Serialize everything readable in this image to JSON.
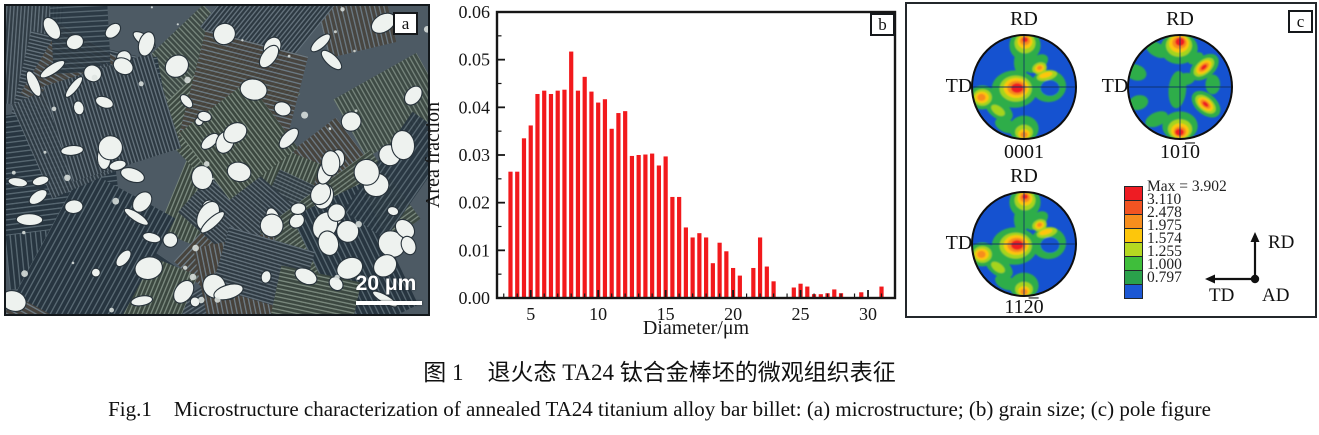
{
  "caption": {
    "zh_prefix": "图 1",
    "zh_text": "退火态 TA24 钛合金棒坯的微观组织表征",
    "en_prefix": "Fig.1",
    "en_text": "Microstructure characterization of annealed TA24 titanium alloy bar billet: (a) microstructure; (b) grain size; (c) pole figure"
  },
  "panel_a": {
    "label": "a",
    "scale_bar_text": "20 μm",
    "palette": {
      "background": "#4d5a64",
      "particle": "#eef2ef",
      "outline": "#27323a"
    }
  },
  "panel_b": {
    "label": "b"
  },
  "chart_data": {
    "type": "bar",
    "title": "",
    "xlabel": "Diameter/μm",
    "ylabel": "Area fraction",
    "xlim": [
      2.5,
      32
    ],
    "ylim": [
      0,
      0.06
    ],
    "x_ticks": [
      5,
      10,
      15,
      20,
      25,
      30
    ],
    "y_ticks": [
      "0.00",
      "0.01",
      "0.02",
      "0.03",
      "0.04",
      "0.05",
      "0.06"
    ],
    "grid": false,
    "legend": "none",
    "bar_color": "#f2191c",
    "bin_width": 0.5,
    "x": [
      3.5,
      4,
      4.5,
      5,
      5.5,
      6,
      6.5,
      7,
      7.5,
      8,
      8.5,
      9,
      9.5,
      10,
      10.5,
      11,
      11.5,
      12,
      12.5,
      13,
      13.5,
      14,
      14.5,
      15,
      15.5,
      16,
      16.5,
      17,
      17.5,
      18,
      18.5,
      19,
      19.5,
      20,
      20.5,
      21,
      21.5,
      22,
      22.5,
      23,
      23.5,
      24,
      24.5,
      25,
      25.5,
      26,
      26.5,
      27,
      27.5,
      28,
      28.5,
      29,
      29.5,
      30,
      30.5,
      31
    ],
    "values": [
      0.0265,
      0.0265,
      0.0335,
      0.0362,
      0.0428,
      0.0435,
      0.0428,
      0.0435,
      0.0437,
      0.0517,
      0.0435,
      0.0464,
      0.0433,
      0.041,
      0.0417,
      0.0355,
      0.0388,
      0.0392,
      0.0298,
      0.03,
      0.0301,
      0.0303,
      0.0278,
      0.0297,
      0.0212,
      0.0212,
      0.0148,
      0.0127,
      0.0136,
      0.0127,
      0.0073,
      0.0116,
      0.0098,
      0.0063,
      0.0047,
      0,
      0.0063,
      0.0127,
      0.0066,
      0.0035,
      0,
      0,
      0.0022,
      0.003,
      0.0024,
      0.0008,
      0.0008,
      0.001,
      0.0018,
      0.001,
      0,
      0,
      0.0012,
      0,
      0,
      0.0024
    ]
  },
  "panel_c": {
    "label": "c",
    "pole_figures": [
      {
        "top_label": "RD",
        "left_label": "TD",
        "title": "0001",
        "pattern": "A"
      },
      {
        "top_label": "RD",
        "left_label": "TD",
        "title": "101̅0",
        "pattern": "B"
      },
      {
        "top_label": "RD",
        "left_label": "TD",
        "title": "112̅0",
        "pattern": "A"
      }
    ],
    "legend": {
      "labels": [
        "Max = 3.902",
        "3.110",
        "2.478",
        "1.975",
        "1.574",
        "1.255",
        "1.000",
        "0.797"
      ],
      "colors": [
        "#ee1c23",
        "#f25422",
        "#f78e1d",
        "#fdc60b",
        "#b5d821",
        "#3fbe3b",
        "#2aa14b",
        "#1b57d4"
      ]
    },
    "triad": {
      "up": "RD",
      "left": "TD",
      "origin": "AD"
    },
    "pole_colors": {
      "bg": "#1552d0",
      "g": "#2fad48",
      "b2": "#1552d0",
      "yg": "#a6d41d",
      "y": "#fdc60b",
      "o": "#f78d1e",
      "r": "#ee1c23"
    },
    "patterns": {
      "A": [
        [
          "g",
          0.02,
          -0.8,
          0.3,
          0.3,
          0
        ],
        [
          "g",
          -0.02,
          -0.52,
          0.17,
          0.28,
          10
        ],
        [
          "g",
          -0.18,
          0.04,
          0.44,
          0.36,
          0
        ],
        [
          "g",
          -0.8,
          0.2,
          0.26,
          0.23,
          0
        ],
        [
          "g",
          -0.48,
          0.44,
          0.3,
          0.17,
          35
        ],
        [
          "g",
          -0.35,
          0.74,
          0.22,
          0.13,
          25
        ],
        [
          "g",
          0.0,
          0.8,
          0.28,
          0.25,
          0
        ],
        [
          "g",
          0.47,
          -0.02,
          0.34,
          0.31,
          0
        ],
        [
          "g",
          0.25,
          -0.45,
          0.24,
          0.14,
          -35
        ],
        [
          "g",
          0.13,
          0.0,
          0.14,
          0.11,
          0
        ],
        [
          "b2",
          0.5,
          0.02,
          0.18,
          0.15,
          0
        ],
        [
          "yg",
          0.02,
          -0.84,
          0.2,
          0.19,
          0
        ],
        [
          "yg",
          -0.16,
          0.03,
          0.31,
          0.25,
          0
        ],
        [
          "yg",
          -0.8,
          0.2,
          0.18,
          0.16,
          0
        ],
        [
          "yg",
          0.0,
          0.87,
          0.17,
          0.14,
          0
        ],
        [
          "yg",
          0.3,
          -0.36,
          0.14,
          0.11,
          -20
        ],
        [
          "yg",
          0.44,
          -0.22,
          0.2,
          0.09,
          -15
        ],
        [
          "yg",
          -0.5,
          0.45,
          0.15,
          0.08,
          35
        ],
        [
          "y",
          0.02,
          -0.87,
          0.14,
          0.13,
          0
        ],
        [
          "y",
          -0.15,
          0.02,
          0.24,
          0.19,
          0
        ],
        [
          "y",
          -0.81,
          0.2,
          0.13,
          0.11,
          0
        ],
        [
          "y",
          0.0,
          0.9,
          0.11,
          0.09,
          0
        ],
        [
          "y",
          0.3,
          -0.36,
          0.09,
          0.07,
          -20
        ],
        [
          "y",
          0.42,
          -0.23,
          0.13,
          0.05,
          -15
        ],
        [
          "o",
          0.02,
          -0.89,
          0.1,
          0.09,
          0
        ],
        [
          "o",
          -0.14,
          0.02,
          0.18,
          0.14,
          0
        ],
        [
          "o",
          -0.82,
          0.2,
          0.08,
          0.07,
          0
        ],
        [
          "o",
          0.0,
          0.92,
          0.07,
          0.06,
          0
        ],
        [
          "o",
          0.3,
          -0.37,
          0.05,
          0.04,
          -20
        ],
        [
          "r",
          -0.13,
          0.02,
          0.12,
          0.095,
          0
        ],
        [
          "r",
          0.02,
          -0.91,
          0.055,
          0.05,
          0
        ]
      ],
      "B": [
        [
          "g",
          -0.02,
          -0.74,
          0.36,
          0.3,
          0
        ],
        [
          "g",
          0.47,
          -0.38,
          0.32,
          0.2,
          -40
        ],
        [
          "g",
          0.5,
          0.33,
          0.32,
          0.2,
          40
        ],
        [
          "g",
          0.0,
          0.75,
          0.34,
          0.28,
          0
        ],
        [
          "g",
          -0.05,
          0.05,
          0.17,
          0.36,
          5
        ],
        [
          "g",
          0.1,
          -0.15,
          0.19,
          0.12,
          -10
        ],
        [
          "g",
          -0.85,
          -0.28,
          0.21,
          0.15,
          20
        ],
        [
          "g",
          -0.8,
          0.3,
          0.19,
          0.14,
          -15
        ],
        [
          "g",
          -0.45,
          -0.72,
          0.23,
          0.13,
          30
        ],
        [
          "g",
          -0.45,
          0.62,
          0.23,
          0.13,
          -25
        ],
        [
          "g",
          0.63,
          -0.05,
          0.14,
          0.19,
          0
        ],
        [
          "g",
          0.3,
          -0.55,
          0.16,
          0.1,
          -30
        ],
        [
          "yg",
          -0.02,
          -0.8,
          0.25,
          0.22,
          0
        ],
        [
          "yg",
          0.46,
          -0.38,
          0.23,
          0.13,
          -40
        ],
        [
          "yg",
          0.49,
          0.33,
          0.23,
          0.13,
          40
        ],
        [
          "yg",
          0.0,
          0.81,
          0.23,
          0.19,
          0
        ],
        [
          "y",
          -0.02,
          -0.83,
          0.19,
          0.17,
          0
        ],
        [
          "y",
          0.46,
          -0.38,
          0.17,
          0.1,
          -40
        ],
        [
          "y",
          0.49,
          0.33,
          0.17,
          0.1,
          40
        ],
        [
          "y",
          0.0,
          0.84,
          0.17,
          0.14,
          0
        ],
        [
          "o",
          -0.01,
          -0.85,
          0.14,
          0.12,
          0
        ],
        [
          "o",
          0.46,
          -0.38,
          0.12,
          0.065,
          -40
        ],
        [
          "o",
          0.49,
          0.33,
          0.12,
          0.065,
          40
        ],
        [
          "o",
          0.0,
          0.86,
          0.12,
          0.1,
          0
        ],
        [
          "r",
          0.0,
          -0.87,
          0.09,
          0.08,
          0
        ],
        [
          "r",
          0.46,
          -0.38,
          0.07,
          0.038,
          -40
        ],
        [
          "r",
          0.49,
          0.33,
          0.07,
          0.038,
          40
        ],
        [
          "r",
          -0.01,
          0.87,
          0.085,
          0.07,
          0
        ]
      ]
    }
  }
}
